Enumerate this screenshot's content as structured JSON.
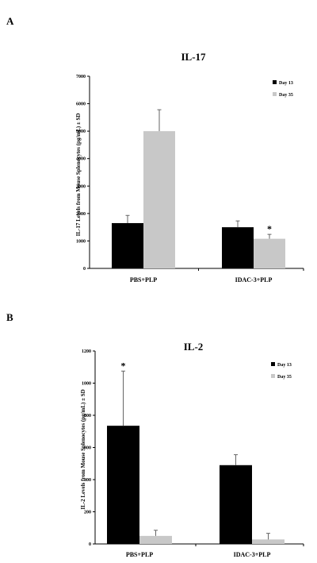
{
  "colors": {
    "day13": "#000000",
    "day35": "#c8c8c8",
    "axis": "#000000",
    "error": "#666666"
  },
  "chart_data": [
    {
      "panel": "A",
      "type": "bar",
      "title": "IL-17",
      "ylabel": "IL-17 Levels from Mouse Splenocytes (pg/mL) ± SD",
      "xlabel": "",
      "ylim": [
        0,
        7000
      ],
      "yticks": [
        0,
        1000,
        2000,
        3000,
        4000,
        5000,
        6000,
        7000
      ],
      "categories": [
        "PBS+PLP",
        "IDAC-3+PLP"
      ],
      "legend_position": "top-right",
      "series": [
        {
          "name": "Day 13",
          "values": [
            1650,
            1500
          ],
          "errors": [
            280,
            230
          ]
        },
        {
          "name": "Day 35",
          "values": [
            5000,
            1080
          ],
          "errors": [
            780,
            160
          ]
        }
      ],
      "annotations": [
        {
          "text": "*",
          "series": 1,
          "category": 1
        }
      ]
    },
    {
      "panel": "B",
      "type": "bar",
      "title": "IL-2",
      "ylabel": "IL-2 Levels from Mouse Splenocytes (pg/mL) ± SD",
      "xlabel": "",
      "ylim": [
        0,
        1200
      ],
      "yticks": [
        0,
        200,
        400,
        600,
        800,
        1000,
        1200
      ],
      "categories": [
        "PBS+PLP",
        "IDAC-3+PLP"
      ],
      "legend_position": "top-right",
      "series": [
        {
          "name": "Day 13",
          "values": [
            735,
            490
          ],
          "errors": [
            340,
            65
          ]
        },
        {
          "name": "Day 35",
          "values": [
            50,
            28
          ],
          "errors": [
            35,
            38
          ]
        }
      ],
      "annotations": [
        {
          "text": "*",
          "series": 0,
          "category": 0
        }
      ]
    }
  ]
}
